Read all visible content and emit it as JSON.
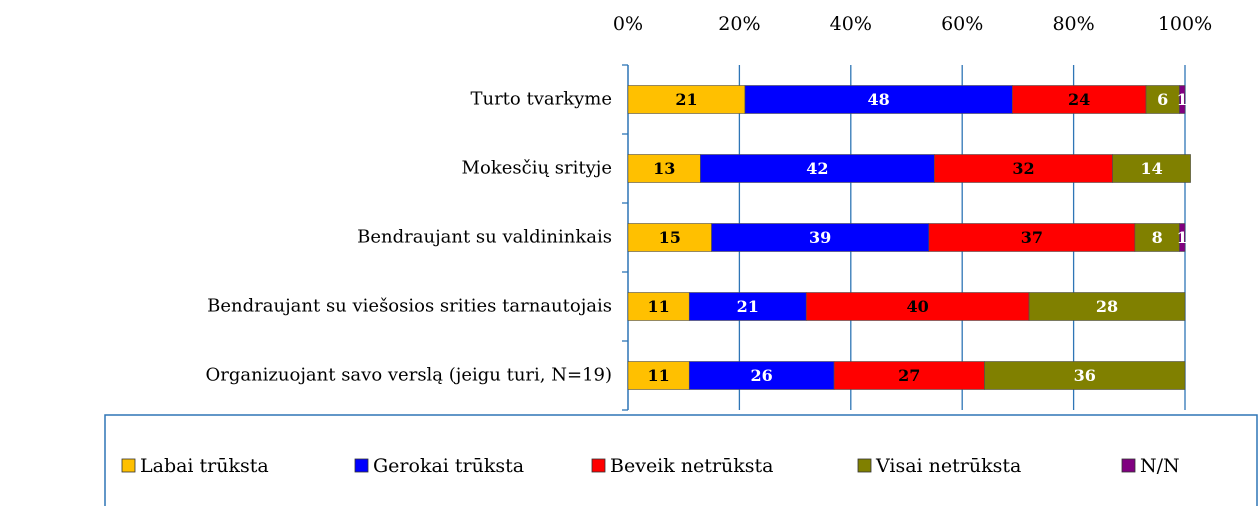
{
  "chart_data": {
    "type": "stacked-barh",
    "categories": [
      "Turto tvarkyme",
      "Mokesčių srityje",
      "Bendraujant su valdininkais",
      "Bendraujant su viešosios srities tarnautojais",
      "Organizuojant savo verslą (jeigu turi, N=19)"
    ],
    "series": [
      {
        "name": "Labai trūksta",
        "color": "#ffc000",
        "label_color": "#000000",
        "values": [
          21,
          13,
          15,
          11,
          11
        ]
      },
      {
        "name": "Gerokai trūksta",
        "color": "#0000ff",
        "label_color": "#ffffff",
        "values": [
          48,
          42,
          39,
          21,
          26
        ]
      },
      {
        "name": "Beveik netrūksta",
        "color": "#ff0000",
        "label_color": "#000000",
        "values": [
          24,
          32,
          37,
          40,
          27
        ]
      },
      {
        "name": "Visai netrūksta",
        "color": "#808000",
        "label_color": "#ffffff",
        "values": [
          6,
          14,
          8,
          28,
          36
        ]
      },
      {
        "name": "N/N",
        "color": "#800080",
        "label_color": "#ffffff",
        "values": [
          1,
          null,
          1,
          null,
          null
        ]
      }
    ],
    "xlim": [
      0,
      100
    ],
    "xticks": [
      {
        "value": 0,
        "label": "0%"
      },
      {
        "value": 20,
        "label": "20%"
      },
      {
        "value": 40,
        "label": "40%"
      },
      {
        "value": 60,
        "label": "60%"
      },
      {
        "value": 80,
        "label": "80%"
      },
      {
        "value": 100,
        "label": "100%"
      }
    ],
    "grid": true,
    "legend": "bottom"
  }
}
